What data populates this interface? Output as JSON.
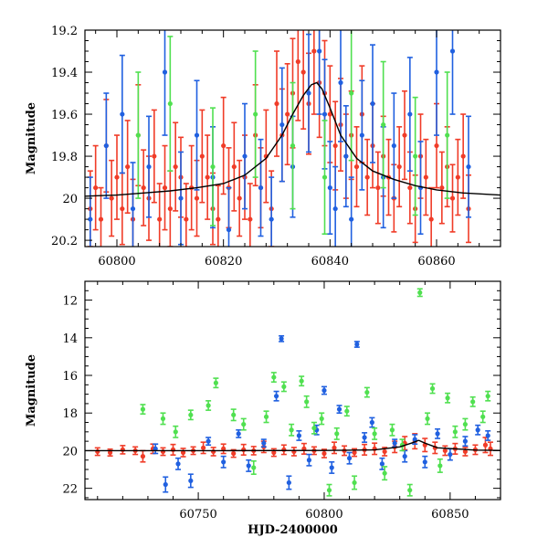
{
  "chart_data": [
    {
      "type": "scatter",
      "xlabel": "",
      "ylabel": "Magnitude",
      "xlim": [
        60794,
        60872
      ],
      "ylim": [
        20.23,
        19.2
      ],
      "y_inverted": true,
      "x_ticks": [
        60800,
        60820,
        60840,
        60860
      ],
      "y_ticks": [
        19.2,
        19.4,
        19.6,
        19.8,
        20,
        20.2
      ],
      "y_tick_labels": [
        "19.2",
        "19.4",
        "19.6",
        "19.8",
        "20",
        "20.2"
      ],
      "error_bars": true,
      "model_curve": {
        "name": "",
        "color": "#000000",
        "x": [
          60794,
          60800,
          60805,
          60810,
          60815,
          60820,
          60824,
          60828,
          60831,
          60833,
          60835,
          60836.5,
          60837.5,
          60838.5,
          60840,
          60842,
          60845,
          60848,
          60852,
          60856,
          60860,
          60865,
          60872
        ],
        "y": [
          19.99,
          19.985,
          19.975,
          19.965,
          19.95,
          19.93,
          19.89,
          19.81,
          19.7,
          19.6,
          19.51,
          19.46,
          19.45,
          19.48,
          19.57,
          19.7,
          19.81,
          19.87,
          19.91,
          19.94,
          19.96,
          19.975,
          19.985
        ]
      },
      "series": [
        {
          "name": "",
          "color": "#f03c28",
          "x": [
            60795,
            60796,
            60797,
            60798,
            60799,
            60800,
            60801,
            60802,
            60803,
            60804,
            60805,
            60806,
            60807,
            60808,
            60809,
            60810,
            60811,
            60812,
            60813,
            60814,
            60815,
            60816,
            60817,
            60818,
            60819,
            60820,
            60821,
            60822,
            60823,
            60824,
            60825,
            60826,
            60827,
            60828,
            60829,
            60830,
            60831,
            60832,
            60833,
            60834,
            60835,
            60836,
            60837,
            60838,
            60839,
            60840,
            60841,
            60842,
            60843,
            60844,
            60845,
            60846,
            60847,
            60848,
            60849,
            60850,
            60851,
            60852,
            60853,
            60854,
            60855,
            60856,
            60857,
            60858,
            60859,
            60860,
            60861,
            60862,
            60863,
            60864,
            60865,
            60866
          ],
          "y": [
            20.05,
            19.95,
            20.1,
            19.75,
            20.0,
            19.9,
            20.05,
            19.85,
            20.1,
            19.7,
            19.95,
            20.0,
            19.8,
            20.1,
            19.95,
            20.05,
            19.85,
            19.9,
            20.1,
            19.95,
            20.0,
            19.8,
            19.9,
            20.05,
            20.1,
            19.75,
            19.95,
            19.85,
            20.0,
            19.9,
            20.1,
            19.7,
            19.95,
            19.8,
            20.05,
            19.55,
            19.7,
            19.6,
            19.5,
            19.35,
            19.4,
            19.55,
            19.3,
            19.45,
            19.5,
            19.6,
            19.75,
            19.65,
            19.8,
            19.7,
            19.85,
            19.6,
            19.9,
            19.75,
            19.95,
            19.8,
            19.9,
            20.0,
            19.85,
            19.7,
            19.95,
            20.05,
            19.8,
            19.9,
            20.1,
            19.75,
            19.95,
            19.85,
            20.0,
            19.9,
            19.8,
            20.05
          ],
          "err": [
            0.18,
            0.2,
            0.15,
            0.22,
            0.18,
            0.2,
            0.17,
            0.22,
            0.19,
            0.24,
            0.18,
            0.2,
            0.22,
            0.17,
            0.2,
            0.18,
            0.21,
            0.19,
            0.17,
            0.2,
            0.18,
            0.22,
            0.2,
            0.17,
            0.16,
            0.23,
            0.19,
            0.21,
            0.18,
            0.2,
            0.17,
            0.24,
            0.19,
            0.22,
            0.18,
            0.25,
            0.22,
            0.24,
            0.26,
            0.28,
            0.27,
            0.24,
            0.3,
            0.26,
            0.25,
            0.23,
            0.21,
            0.22,
            0.2,
            0.21,
            0.19,
            0.23,
            0.18,
            0.2,
            0.17,
            0.19,
            0.18,
            0.16,
            0.19,
            0.21,
            0.17,
            0.16,
            0.2,
            0.18,
            0.15,
            0.2,
            0.17,
            0.19,
            0.16,
            0.18,
            0.2,
            0.16
          ]
        },
        {
          "name": "",
          "color": "#2060e0",
          "x": [
            60795,
            60798,
            60801,
            60803,
            60806,
            60809,
            60812,
            60815,
            60818,
            60821,
            60824,
            60827,
            60829,
            60831,
            60833,
            60836,
            60838,
            60839,
            60840,
            60841,
            60842,
            60843,
            60844,
            60846,
            60848,
            60850,
            60852,
            60855,
            60857,
            60860,
            60863,
            60866
          ],
          "y": [
            20.1,
            19.75,
            19.6,
            20.05,
            19.85,
            19.4,
            20.0,
            19.7,
            19.9,
            20.15,
            19.8,
            19.95,
            20.1,
            19.65,
            19.85,
            19.5,
            19.3,
            19.6,
            19.95,
            20.05,
            19.45,
            19.8,
            20.1,
            19.7,
            19.55,
            19.9,
            19.75,
            19.6,
            19.95,
            19.4,
            19.3,
            19.85
          ],
          "err": [
            0.2,
            0.25,
            0.28,
            0.22,
            0.24,
            0.3,
            0.22,
            0.26,
            0.24,
            0.2,
            0.25,
            0.23,
            0.2,
            0.27,
            0.24,
            0.28,
            0.3,
            0.26,
            0.22,
            0.2,
            0.28,
            0.24,
            0.2,
            0.26,
            0.28,
            0.24,
            0.25,
            0.27,
            0.22,
            0.3,
            0.3,
            0.24
          ]
        },
        {
          "name": "",
          "color": "#50e050",
          "x": [
            60804,
            60810,
            60818,
            60826,
            60833,
            60839,
            60844,
            60850,
            60856,
            60862
          ],
          "y": [
            19.7,
            19.55,
            19.85,
            19.6,
            19.75,
            19.9,
            19.5,
            19.65,
            19.8,
            19.7
          ],
          "err": [
            0.3,
            0.32,
            0.28,
            0.3,
            0.3,
            0.27,
            0.32,
            0.3,
            0.28,
            0.3
          ]
        }
      ]
    },
    {
      "type": "scatter",
      "xlabel": "HJD-2400000",
      "ylabel": "Magnitude",
      "xlim": [
        60705,
        60870
      ],
      "ylim": [
        22.6,
        11
      ],
      "y_inverted": true,
      "x_ticks": [
        60750,
        60800,
        60850
      ],
      "y_ticks": [
        12,
        14,
        16,
        18,
        20,
        22
      ],
      "y_tick_labels": [
        "12",
        "14",
        "16",
        "18",
        "20",
        "22"
      ],
      "error_bars": true,
      "model_curve": {
        "name": "",
        "color": "#000000",
        "x": [
          60705,
          60760,
          60800,
          60820,
          60830,
          60835,
          60837.5,
          60840,
          60845,
          60860,
          60870
        ],
        "y": [
          20.0,
          20.0,
          19.99,
          19.96,
          19.8,
          19.58,
          19.45,
          19.6,
          19.85,
          19.97,
          19.99
        ]
      },
      "series": [
        {
          "name": "",
          "color": "#f03c28",
          "x": [
            60710,
            60715,
            60720,
            60725,
            60728,
            60732,
            60736,
            60740,
            60744,
            60748,
            60752,
            60756,
            60760,
            60764,
            60768,
            60772,
            60776,
            60780,
            60784,
            60788,
            60792,
            60796,
            60800,
            60804,
            60808,
            60812,
            60816,
            60820,
            60824,
            60828,
            60832,
            60836,
            60840,
            60844,
            60848,
            60852,
            60856,
            60860,
            60864,
            60866
          ],
          "y": [
            20.05,
            20.1,
            19.95,
            20.0,
            20.3,
            19.9,
            20.05,
            19.95,
            20.1,
            20.0,
            19.85,
            20.05,
            19.9,
            20.15,
            19.95,
            20.0,
            19.8,
            20.1,
            19.95,
            20.05,
            19.9,
            20.0,
            20.15,
            19.85,
            20.0,
            20.1,
            19.95,
            19.9,
            20.05,
            19.8,
            19.6,
            19.5,
            19.7,
            19.85,
            20.0,
            19.9,
            20.05,
            19.95,
            19.7,
            19.9
          ],
          "err": [
            0.2,
            0.18,
            0.22,
            0.2,
            0.3,
            0.25,
            0.2,
            0.28,
            0.22,
            0.2,
            0.3,
            0.22,
            0.25,
            0.2,
            0.28,
            0.22,
            0.3,
            0.2,
            0.25,
            0.22,
            0.28,
            0.2,
            0.22,
            0.3,
            0.25,
            0.2,
            0.28,
            0.3,
            0.22,
            0.3,
            0.35,
            0.4,
            0.35,
            0.3,
            0.25,
            0.28,
            0.22,
            0.25,
            0.4,
            0.35
          ]
        },
        {
          "name": "",
          "color": "#2060e0",
          "x": [
            60733,
            60737,
            60742,
            60747,
            60754,
            60760,
            60766,
            60770,
            60776,
            60781,
            60783,
            60786,
            60790,
            60794,
            60797,
            60800,
            60803,
            60806,
            60810,
            60813,
            60816,
            60819,
            60823,
            60828,
            60832,
            60836,
            60840,
            60845,
            60850,
            60856,
            60861,
            60865
          ],
          "y": [
            19.9,
            21.8,
            20.7,
            21.6,
            19.5,
            20.6,
            19.1,
            20.8,
            19.6,
            17.1,
            14.05,
            21.7,
            19.2,
            20.5,
            18.9,
            16.8,
            20.9,
            17.8,
            20.4,
            14.35,
            19.3,
            18.5,
            20.7,
            19.6,
            20.3,
            19.4,
            20.6,
            19.1,
            20.2,
            19.5,
            18.9,
            19.2
          ],
          "err": [
            0.25,
            0.4,
            0.3,
            0.35,
            0.2,
            0.3,
            0.2,
            0.3,
            0.2,
            0.25,
            0.15,
            0.35,
            0.25,
            0.3,
            0.25,
            0.2,
            0.3,
            0.2,
            0.3,
            0.15,
            0.25,
            0.25,
            0.3,
            0.2,
            0.3,
            0.25,
            0.3,
            0.25,
            0.3,
            0.25,
            0.25,
            0.25
          ]
        },
        {
          "name": "",
          "color": "#50e050",
          "x": [
            60728,
            60736,
            60741,
            60747,
            60754,
            60757,
            60764,
            60768,
            60772,
            60777,
            60780,
            60784,
            60787,
            60791,
            60793,
            60796,
            60799,
            60802,
            60805,
            60809,
            60812,
            60817,
            60820,
            60824,
            60827,
            60831,
            60834,
            60838,
            60841,
            60843,
            60846,
            60849,
            60852,
            60856,
            60859,
            60863,
            60865
          ],
          "y": [
            17.8,
            18.3,
            19.0,
            18.1,
            17.6,
            16.4,
            18.1,
            18.6,
            20.9,
            18.2,
            16.1,
            16.6,
            18.9,
            16.3,
            17.4,
            18.8,
            18.3,
            22.1,
            19.1,
            17.9,
            21.7,
            16.9,
            19.1,
            21.2,
            18.9,
            19.7,
            22.1,
            11.6,
            18.3,
            16.7,
            20.8,
            17.2,
            19.0,
            18.6,
            17.4,
            18.2,
            17.1
          ],
          "err": [
            0.25,
            0.3,
            0.3,
            0.25,
            0.25,
            0.25,
            0.3,
            0.3,
            0.35,
            0.3,
            0.25,
            0.25,
            0.3,
            0.25,
            0.3,
            0.3,
            0.3,
            0.3,
            0.3,
            0.25,
            0.35,
            0.25,
            0.3,
            0.35,
            0.3,
            0.3,
            0.3,
            0.2,
            0.3,
            0.25,
            0.35,
            0.25,
            0.3,
            0.3,
            0.25,
            0.3,
            0.25
          ]
        }
      ]
    }
  ]
}
